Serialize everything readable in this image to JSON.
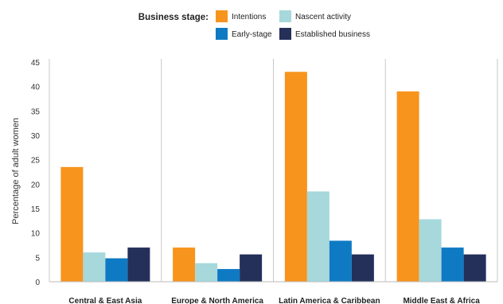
{
  "chart_data": {
    "type": "bar",
    "legend_title": "Business stage:",
    "categories": [
      "Central & East Asia",
      "Europe & North America",
      "Latin America & Caribbean",
      "Middle East & Africa"
    ],
    "series": [
      {
        "name": "Intentions",
        "color": "#f7941d",
        "values": [
          23.5,
          7.0,
          43.0,
          39.0
        ]
      },
      {
        "name": "Nascent activity",
        "color": "#a6d8dc",
        "values": [
          6.0,
          3.8,
          18.5,
          12.8
        ]
      },
      {
        "name": "Early-stage",
        "color": "#0f7ac4",
        "values": [
          4.8,
          2.6,
          8.4,
          7.0
        ]
      },
      {
        "name": "Established business",
        "color": "#25305a",
        "values": [
          7.0,
          5.6,
          5.6,
          5.6
        ]
      }
    ],
    "ylabel": "Percentage of adult women",
    "xlabel": "",
    "ylim": [
      0,
      45
    ],
    "yticks": [
      0,
      5,
      10,
      15,
      20,
      25,
      30,
      35,
      40,
      45
    ],
    "grid": false,
    "legend_position": "top"
  }
}
